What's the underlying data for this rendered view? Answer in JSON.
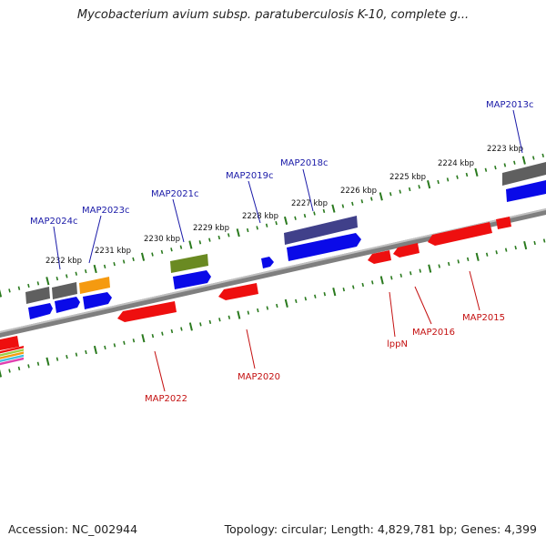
{
  "title": "Mycobacterium avium subsp. paratuberculosis K-10, complete g...",
  "footer": {
    "accession": "Accession: NC_002944",
    "summary": "Topology: circular; Length: 4,829,781 bp; Genes: 4,399"
  },
  "colors": {
    "backbone": "#8a8a8a",
    "tick": "#2a7a1e",
    "forward_label": "#1a1aa8",
    "reverse_label": "#c41010",
    "cds_forward": "#0a0ae8",
    "cds_reverse": "#ee0f0f",
    "gray_feature": "#5f5f5f",
    "orange_feature": "#f59a10",
    "olive_feature": "#6a8a22",
    "purple_feature": "#40408a"
  },
  "scale_labels": [
    "2223 kbp",
    "2224 kbp",
    "2225 kbp",
    "2226 kbp",
    "2227 kbp",
    "2228 kbp",
    "2229 kbp",
    "2230 kbp",
    "2231 kbp",
    "2232 kbp"
  ],
  "gene_labels_forward": [
    "MAP2013c",
    "MAP2018c",
    "MAP2019c",
    "MAP2021c",
    "MAP2023c",
    "MAP2024c"
  ],
  "gene_labels_reverse": [
    "MAP2015",
    "MAP2016",
    "lppN",
    "MAP2020",
    "MAP2022"
  ],
  "legend_swatches": [
    "#ee0f0f",
    "#9ad04a",
    "#f59a10",
    "#40c0e0",
    "#e040b0"
  ]
}
